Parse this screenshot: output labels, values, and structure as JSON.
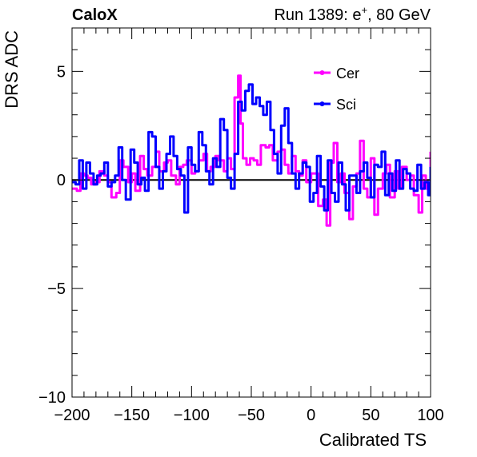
{
  "chart_data": {
    "type": "line",
    "title_left": "CaloX",
    "title_right_prefix": "Run 1389: e",
    "title_right_sup": "+",
    "title_right_suffix": ", 80 GeV",
    "xlabel": "Calibrated TS",
    "ylabel": "DRS ADC",
    "xlim": [
      -200,
      100
    ],
    "ylim": [
      -10,
      7
    ],
    "xticks": [
      -200,
      -150,
      -100,
      -50,
      0,
      50,
      100
    ],
    "xtick_labels": [
      "−200",
      "−150",
      "−100",
      "−50",
      "0",
      "50",
      "100"
    ],
    "yticks": [
      -10,
      -5,
      0,
      5
    ],
    "ytick_labels": [
      "−10",
      "−5",
      "0",
      "5"
    ],
    "grid": false,
    "legend_position": "top-right",
    "baseline": 0,
    "series": [
      {
        "name": "Cer",
        "color": "#ff00ff",
        "x": [
          -200,
          -196,
          -193,
          -190,
          -187,
          -184,
          -180,
          -177,
          -173,
          -170,
          -167,
          -163,
          -160,
          -157,
          -153,
          -150,
          -147,
          -143,
          -140,
          -137,
          -133,
          -130,
          -127,
          -123,
          -120,
          -117,
          -113,
          -110,
          -107,
          -104,
          -100,
          -97,
          -94,
          -90,
          -87,
          -84,
          -80,
          -77,
          -73,
          -70,
          -67,
          -64,
          -61,
          -59,
          -57,
          -54,
          -51,
          -48,
          -45,
          -42,
          -38,
          -35,
          -32,
          -28,
          -25,
          -22,
          -19,
          -16,
          -13,
          -10,
          -7,
          -4,
          0,
          3,
          6,
          10,
          13,
          16,
          19,
          22,
          25,
          28,
          32,
          35,
          38,
          41,
          44,
          47,
          50,
          53,
          56,
          60,
          63,
          66,
          70,
          73,
          76,
          80,
          83,
          86,
          90,
          93,
          96,
          100
        ],
        "y": [
          -0.4,
          -0.5,
          0.3,
          0.2,
          0.1,
          -0.2,
          -0.1,
          0.4,
          0.2,
          -0.1,
          -0.8,
          -0.6,
          0.9,
          0.6,
          -0.1,
          0.3,
          -0.5,
          1.1,
          0.5,
          0.2,
          0.6,
          1.3,
          0.4,
          0.8,
          0.9,
          0.2,
          -0.2,
          0.6,
          0.7,
          0.9,
          0.3,
          0.4,
          0.9,
          1.2,
          0.4,
          0.6,
          1.1,
          0.9,
          0.4,
          1.0,
          0.5,
          3.8,
          4.8,
          2.6,
          1.0,
          0.7,
          1.0,
          0.9,
          0.7,
          1.6,
          1.5,
          1.6,
          0.9,
          1.3,
          1.4,
          0.7,
          0.3,
          1.1,
          0.4,
          0.2,
          0.9,
          -0.1,
          0.3,
          0.3,
          -1.2,
          -0.9,
          -2.1,
          0.8,
          1.7,
          -0.1,
          0.3,
          -0.6,
          -1.8,
          -0.3,
          0.3,
          1.8,
          -0.4,
          -0.8,
          1.0,
          -1.6,
          -0.4,
          0.3,
          0.7,
          -0.8,
          0.4,
          -0.4,
          0.6,
          0.0,
          0.2,
          -0.7,
          -1.5,
          0.2,
          -0.4,
          1.3
        ]
      },
      {
        "name": "Sci",
        "color": "#0000ff",
        "x": [
          -200,
          -197,
          -194,
          -191,
          -188,
          -185,
          -182,
          -179,
          -176,
          -173,
          -170,
          -167,
          -164,
          -161,
          -158,
          -155,
          -151,
          -148,
          -145,
          -142,
          -139,
          -136,
          -133,
          -130,
          -127,
          -124,
          -121,
          -118,
          -115,
          -112,
          -109,
          -106,
          -103,
          -100,
          -97,
          -94,
          -91,
          -88,
          -85,
          -82,
          -79,
          -76,
          -73,
          -70,
          -67,
          -64,
          -61,
          -58,
          -55,
          -52,
          -49,
          -46,
          -43,
          -40,
          -37,
          -34,
          -31,
          -28,
          -25,
          -22,
          -19,
          -16,
          -13,
          -10,
          -7,
          -4,
          -1,
          2,
          5,
          8,
          11,
          14,
          17,
          20,
          23,
          26,
          29,
          32,
          35,
          38,
          41,
          44,
          47,
          50,
          53,
          56,
          59,
          62,
          65,
          68,
          71,
          74,
          77,
          80,
          83,
          86,
          89,
          92,
          95,
          98,
          100
        ],
        "y": [
          -0.1,
          -0.2,
          0.9,
          -0.4,
          0.8,
          0.3,
          -0.2,
          0.2,
          0.3,
          0.8,
          -0.3,
          -0.1,
          0.2,
          1.5,
          0.0,
          -0.9,
          1.4,
          0.8,
          -0.2,
          0.1,
          -0.5,
          2.2,
          2.0,
          0.6,
          -0.4,
          0.4,
          1.2,
          2.0,
          1.1,
          0.5,
          0.2,
          -1.5,
          1.5,
          0.7,
          0.4,
          2.2,
          1.6,
          0.4,
          -0.2,
          1.0,
          0.6,
          2.8,
          2.3,
          0.1,
          -0.4,
          1.2,
          3.6,
          3.2,
          4.1,
          4.4,
          3.5,
          3.8,
          3.4,
          3.0,
          3.6,
          2.3,
          1.2,
          0.3,
          2.5,
          3.3,
          1.7,
          0.3,
          -0.4,
          0.3,
          0.8,
          0.6,
          -1.0,
          -0.6,
          1.1,
          -0.3,
          -1.4,
          0.9,
          -0.6,
          -1.0,
          0.8,
          -0.2,
          -1.4,
          0.2,
          0.2,
          -0.6,
          0.4,
          0.8,
          0.1,
          -0.8,
          0.7,
          0.6,
          1.3,
          -0.7,
          0.3,
          -0.5,
          0.9,
          -0.4,
          0.5,
          0.3,
          -0.4,
          -0.5,
          0.7,
          -0.4,
          -0.1,
          -0.7,
          0.6
        ]
      }
    ]
  }
}
